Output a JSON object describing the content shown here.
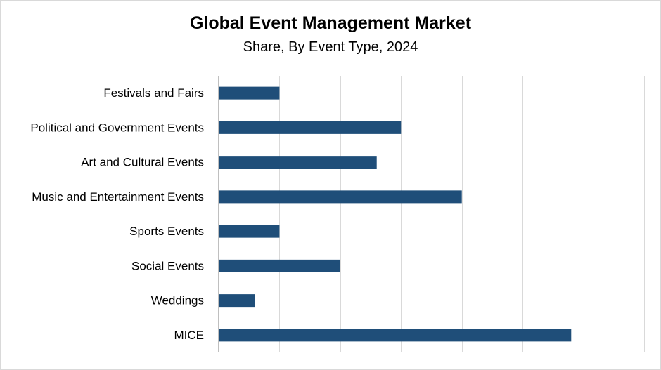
{
  "chart_data": {
    "type": "bar",
    "orientation": "horizontal",
    "title": "Global Event Management Market",
    "subtitle": "Share, By Event Type, 2024",
    "categories": [
      "Festivals and Fairs",
      "Political and Government Events",
      "Art and Cultural Events",
      "Music and Entertainment Events",
      "Sports Events",
      "Social Events",
      "Weddings",
      "MICE"
    ],
    "values": [
      5,
      15,
      13,
      20,
      5,
      10,
      3,
      29
    ],
    "xlim": [
      0,
      35
    ],
    "grid": true,
    "legend": "none",
    "colors": {
      "bar": "#1f4e79",
      "grid": "#d9d9d9",
      "axis": "#bfbfbf"
    }
  }
}
